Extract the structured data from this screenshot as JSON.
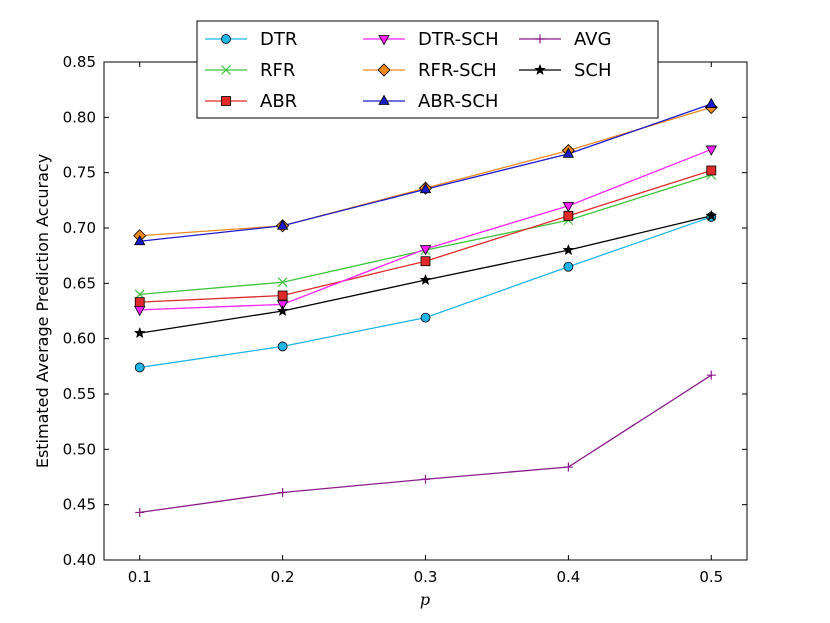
{
  "chart_data": {
    "type": "line",
    "title": "",
    "xlabel": "p",
    "ylabel": "Estimated Average Prediction Accuracy",
    "xlim": [
      0.075,
      0.525
    ],
    "ylim": [
      0.4,
      0.85
    ],
    "x_ticks": [
      "0.1",
      "0.2",
      "0.3",
      "0.4",
      "0.5"
    ],
    "y_ticks": [
      "0.40",
      "0.45",
      "0.50",
      "0.55",
      "0.60",
      "0.65",
      "0.70",
      "0.75",
      "0.80",
      "0.85"
    ],
    "legend_position": "top-center",
    "grid": false,
    "x": [
      0.1,
      0.2,
      0.3,
      0.4,
      0.5
    ],
    "series": [
      {
        "name": "DTR",
        "color": "#1fb5e6",
        "marker": "circle",
        "values": [
          0.574,
          0.593,
          0.619,
          0.665,
          0.71
        ]
      },
      {
        "name": "RFR",
        "color": "#3ec43e",
        "marker": "x",
        "values": [
          0.64,
          0.651,
          0.68,
          0.707,
          0.748
        ]
      },
      {
        "name": "ABR",
        "color": "#e02a2a",
        "marker": "square",
        "values": [
          0.633,
          0.639,
          0.67,
          0.711,
          0.752
        ]
      },
      {
        "name": "DTR-SCH",
        "color": "#ff22ff",
        "marker": "triangle-down",
        "values": [
          0.626,
          0.631,
          0.681,
          0.72,
          0.771
        ]
      },
      {
        "name": "RFR-SCH",
        "color": "#ee8a20",
        "marker": "diamond",
        "values": [
          0.693,
          0.702,
          0.736,
          0.77,
          0.809
        ]
      },
      {
        "name": "ABR-SCH",
        "color": "#1c1cc9",
        "marker": "triangle-up",
        "values": [
          0.688,
          0.702,
          0.735,
          0.767,
          0.812
        ]
      },
      {
        "name": "AVG",
        "color": "#8b1a8b",
        "marker": "plus",
        "values": [
          0.443,
          0.461,
          0.473,
          0.484,
          0.567
        ]
      },
      {
        "name": "SCH",
        "color": "#000000",
        "marker": "star",
        "values": [
          0.605,
          0.625,
          0.653,
          0.68,
          0.711
        ]
      }
    ]
  }
}
